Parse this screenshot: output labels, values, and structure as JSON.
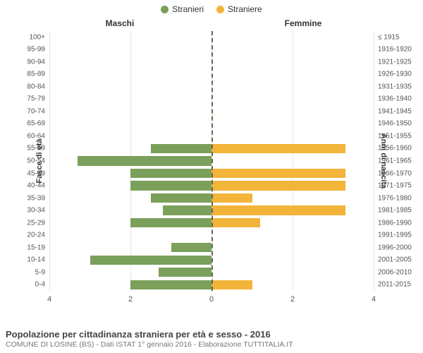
{
  "legend": {
    "male": {
      "label": "Stranieri",
      "color": "#7ba05b"
    },
    "female": {
      "label": "Straniere",
      "color": "#f3b43a"
    }
  },
  "columns": {
    "left": "Maschi",
    "right": "Femmine"
  },
  "y_axis_left_title": "Fasce di età",
  "y_axis_right_title": "Anni di nascita",
  "chart": {
    "type": "population-pyramid",
    "x_max": 4,
    "x_ticks_left": [
      4,
      2,
      0
    ],
    "x_ticks_right": [
      0,
      2,
      4
    ],
    "grid_color": "#e6e6e6",
    "center_line_color": "#6b6648",
    "background_color": "#ffffff",
    "bar_fill_ratio": 0.76,
    "label_fontsize": 10,
    "tick_fontsize": 11,
    "rows": [
      {
        "age": "100+",
        "birth": "≤ 1915",
        "male": 0,
        "female": 0
      },
      {
        "age": "95-99",
        "birth": "1916-1920",
        "male": 0,
        "female": 0
      },
      {
        "age": "90-94",
        "birth": "1921-1925",
        "male": 0,
        "female": 0
      },
      {
        "age": "85-89",
        "birth": "1926-1930",
        "male": 0,
        "female": 0
      },
      {
        "age": "80-84",
        "birth": "1931-1935",
        "male": 0,
        "female": 0
      },
      {
        "age": "75-79",
        "birth": "1936-1940",
        "male": 0,
        "female": 0
      },
      {
        "age": "70-74",
        "birth": "1941-1945",
        "male": 0,
        "female": 0
      },
      {
        "age": "65-69",
        "birth": "1946-1950",
        "male": 0,
        "female": 0
      },
      {
        "age": "60-64",
        "birth": "1951-1955",
        "male": 0,
        "female": 0
      },
      {
        "age": "55-59",
        "birth": "1956-1960",
        "male": 1.5,
        "female": 3.3
      },
      {
        "age": "50-54",
        "birth": "1961-1965",
        "male": 3.3,
        "female": 0
      },
      {
        "age": "45-49",
        "birth": "1966-1970",
        "male": 2.0,
        "female": 3.3
      },
      {
        "age": "40-44",
        "birth": "1971-1975",
        "male": 2.0,
        "female": 3.3
      },
      {
        "age": "35-39",
        "birth": "1976-1980",
        "male": 1.5,
        "female": 1.0
      },
      {
        "age": "30-34",
        "birth": "1981-1985",
        "male": 1.2,
        "female": 3.3
      },
      {
        "age": "25-29",
        "birth": "1986-1990",
        "male": 2.0,
        "female": 1.2
      },
      {
        "age": "20-24",
        "birth": "1991-1995",
        "male": 0,
        "female": 0
      },
      {
        "age": "15-19",
        "birth": "1996-2000",
        "male": 1.0,
        "female": 0
      },
      {
        "age": "10-14",
        "birth": "2001-2005",
        "male": 3.0,
        "female": 0
      },
      {
        "age": "5-9",
        "birth": "2006-2010",
        "male": 1.3,
        "female": 0
      },
      {
        "age": "0-4",
        "birth": "2011-2015",
        "male": 2.0,
        "female": 1.0
      }
    ]
  },
  "footer": {
    "title": "Popolazione per cittadinanza straniera per età e sesso - 2016",
    "subtitle": "COMUNE DI LOSINE (BS) - Dati ISTAT 1° gennaio 2016 - Elaborazione TUTTITALIA.IT"
  }
}
